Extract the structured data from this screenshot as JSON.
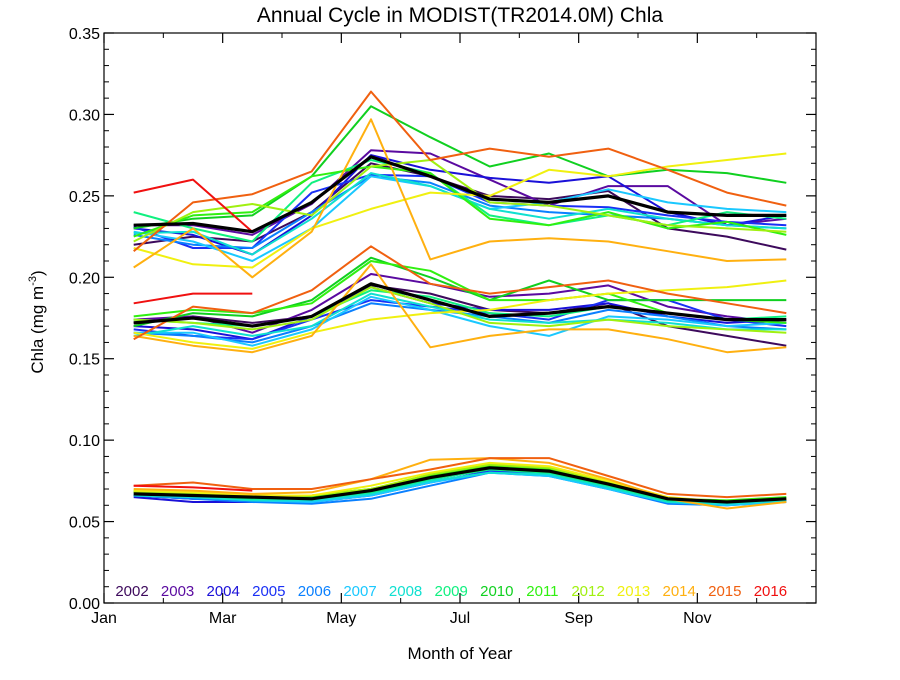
{
  "chart_data": {
    "type": "line",
    "title": "Annual Cycle in MODIST(TR2014.0M) Chla",
    "xlabel": "Month of Year",
    "ylabel_main": "Chla (mg m",
    "ylabel_exp": "-3",
    "ylabel_close": ")",
    "ylim": [
      0,
      0.35
    ],
    "xlim": [
      1,
      13
    ],
    "yticks": [
      "0.00",
      "0.05",
      "0.10",
      "0.15",
      "0.20",
      "0.25",
      "0.30",
      "0.35"
    ],
    "xticks": [
      "Jan",
      "Mar",
      "May",
      "Jul",
      "Sep",
      "Nov"
    ],
    "grid": false,
    "legend_position": "bottom inside plot",
    "x": [
      1.5,
      2.5,
      3.5,
      4.5,
      5.5,
      6.5,
      7.5,
      8.5,
      9.5,
      10.5,
      11.5,
      12.5
    ],
    "groups": [
      {
        "group": "upper",
        "series": [
          {
            "name": "2002",
            "color": "#3d0a5c",
            "values": [
              0.22,
              0.225,
              0.222,
              0.24,
              0.27,
              0.262,
              0.25,
              0.248,
              0.253,
              0.23,
              0.225,
              0.217
            ]
          },
          {
            "name": "2003",
            "color": "#5a0aa0",
            "values": [
              0.232,
              0.232,
              0.226,
              0.245,
              0.278,
              0.276,
              0.26,
              0.244,
              0.256,
              0.256,
              0.232,
              0.236
            ]
          },
          {
            "name": "2004",
            "color": "#1a10d8",
            "values": [
              0.23,
              0.226,
              0.214,
              0.238,
              0.275,
              0.266,
              0.261,
              0.258,
              0.262,
              0.24,
              0.232,
              0.238
            ]
          },
          {
            "name": "2005",
            "color": "#1a30f5",
            "values": [
              0.231,
              0.218,
              0.218,
              0.252,
              0.263,
              0.262,
              0.246,
              0.244,
              0.243,
              0.238,
              0.234,
              0.232
            ]
          },
          {
            "name": "2006",
            "color": "#0a80ff",
            "values": [
              0.226,
              0.22,
              0.218,
              0.24,
              0.262,
              0.258,
              0.244,
              0.24,
              0.238,
              0.236,
              0.232,
              0.23
            ]
          },
          {
            "name": "2007",
            "color": "#1ac8ff",
            "values": [
              0.228,
              0.222,
              0.21,
              0.23,
              0.262,
              0.256,
              0.242,
              0.246,
              0.254,
              0.246,
              0.242,
              0.24
            ]
          },
          {
            "name": "2008",
            "color": "#10e0d0",
            "values": [
              0.227,
              0.228,
              0.214,
              0.236,
              0.264,
              0.256,
              0.242,
              0.236,
              0.242,
              0.236,
              0.232,
              0.23
            ]
          },
          {
            "name": "2009",
            "color": "#10f080",
            "values": [
              0.24,
              0.23,
              0.222,
              0.258,
              0.272,
              0.264,
              0.238,
              0.232,
              0.238,
              0.232,
              0.24,
              0.236
            ]
          },
          {
            "name": "2010",
            "color": "#10d020",
            "values": [
              0.23,
              0.236,
              0.238,
              0.262,
              0.305,
              0.286,
              0.268,
              0.276,
              0.262,
              0.266,
              0.264,
              0.258
            ]
          },
          {
            "name": "2011",
            "color": "#30f010",
            "values": [
              0.225,
              0.238,
              0.24,
              0.262,
              0.268,
              0.264,
              0.236,
              0.232,
              0.24,
              0.23,
              0.234,
              0.226
            ]
          },
          {
            "name": "2012",
            "color": "#a0f010",
            "values": [
              0.222,
              0.24,
              0.245,
              0.238,
              0.268,
              0.272,
              0.246,
              0.244,
              0.238,
              0.232,
              0.23,
              0.228
            ]
          },
          {
            "name": "2013",
            "color": "#f0f010",
            "values": [
              0.218,
              0.208,
              0.206,
              0.23,
              0.242,
              0.252,
              0.25,
              0.266,
              0.262,
              0.268,
              0.272,
              0.276
            ]
          },
          {
            "name": "2014",
            "color": "#ffb010",
            "values": [
              0.206,
              0.23,
              0.2,
              0.228,
              0.297,
              0.211,
              0.222,
              0.224,
              0.222,
              0.216,
              0.21,
              0.211
            ]
          },
          {
            "name": "2015",
            "color": "#f06010",
            "values": [
              0.216,
              0.246,
              0.251,
              0.265,
              0.314,
              0.272,
              0.279,
              0.274,
              0.279,
              0.266,
              0.252,
              0.244
            ]
          },
          {
            "name": "2016",
            "color": "#f01010",
            "values": [
              0.252,
              0.26,
              0.228
            ]
          }
        ],
        "mean": [
          0.232,
          0.233,
          0.228,
          0.246,
          0.274,
          0.262,
          0.248,
          0.246,
          0.25,
          0.24,
          0.238,
          0.238
        ]
      },
      {
        "group": "middle",
        "series": [
          {
            "name": "2002",
            "color": "#3d0a5c",
            "values": [
              0.172,
              0.176,
              0.172,
              0.176,
              0.195,
              0.19,
              0.18,
              0.178,
              0.184,
              0.17,
              0.164,
              0.158
            ]
          },
          {
            "name": "2003",
            "color": "#5a0aa0",
            "values": [
              0.174,
              0.176,
              0.166,
              0.18,
              0.202,
              0.196,
              0.188,
              0.19,
              0.195,
              0.182,
              0.176,
              0.172
            ]
          },
          {
            "name": "2004",
            "color": "#1a10d8",
            "values": [
              0.17,
              0.168,
              0.162,
              0.176,
              0.194,
              0.184,
              0.18,
              0.18,
              0.184,
              0.176,
              0.172,
              0.174
            ]
          },
          {
            "name": "2005",
            "color": "#1a30f5",
            "values": [
              0.168,
              0.164,
              0.162,
              0.174,
              0.186,
              0.182,
              0.178,
              0.174,
              0.186,
              0.186,
              0.174,
              0.17
            ]
          },
          {
            "name": "2006",
            "color": "#0a80ff",
            "values": [
              0.166,
              0.164,
              0.16,
              0.17,
              0.184,
              0.18,
              0.176,
              0.172,
              0.18,
              0.176,
              0.17,
              0.168
            ]
          },
          {
            "name": "2007",
            "color": "#1ac8ff",
            "values": [
              0.166,
              0.166,
              0.158,
              0.168,
              0.188,
              0.18,
              0.17,
              0.164,
              0.176,
              0.174,
              0.17,
              0.172
            ]
          },
          {
            "name": "2008",
            "color": "#10e0d0",
            "values": [
              0.164,
              0.17,
              0.164,
              0.17,
              0.19,
              0.182,
              0.174,
              0.172,
              0.174,
              0.172,
              0.168,
              0.168
            ]
          },
          {
            "name": "2009",
            "color": "#10f080",
            "values": [
              0.174,
              0.172,
              0.17,
              0.176,
              0.192,
              0.188,
              0.178,
              0.176,
              0.182,
              0.178,
              0.174,
              0.176
            ]
          },
          {
            "name": "2010",
            "color": "#10d020",
            "values": [
              0.17,
              0.178,
              0.176,
              0.186,
              0.212,
              0.2,
              0.186,
              0.198,
              0.186,
              0.186,
              0.186,
              0.186
            ]
          },
          {
            "name": "2011",
            "color": "#30f010",
            "values": [
              0.176,
              0.18,
              0.178,
              0.184,
              0.21,
              0.204,
              0.186,
              0.186,
              0.19,
              0.178,
              0.174,
              0.172
            ]
          },
          {
            "name": "2012",
            "color": "#a0f010",
            "values": [
              0.174,
              0.172,
              0.168,
              0.174,
              0.194,
              0.184,
              0.172,
              0.17,
              0.174,
              0.17,
              0.168,
              0.166
            ]
          },
          {
            "name": "2013",
            "color": "#f0f010",
            "values": [
              0.166,
              0.16,
              0.156,
              0.166,
              0.174,
              0.178,
              0.18,
              0.186,
              0.19,
              0.192,
              0.194,
              0.198
            ]
          },
          {
            "name": "2014",
            "color": "#ffb010",
            "values": [
              0.164,
              0.158,
              0.154,
              0.164,
              0.208,
              0.157,
              0.164,
              0.168,
              0.168,
              0.162,
              0.154,
              0.157
            ]
          },
          {
            "name": "2015",
            "color": "#f06010",
            "values": [
              0.162,
              0.182,
              0.178,
              0.192,
              0.219,
              0.196,
              0.19,
              0.194,
              0.198,
              0.19,
              0.184,
              0.178
            ]
          },
          {
            "name": "2016",
            "color": "#f01010",
            "values": [
              0.184,
              0.19,
              0.19
            ]
          }
        ],
        "mean": [
          0.172,
          0.175,
          0.17,
          0.176,
          0.196,
          0.186,
          0.176,
          0.178,
          0.182,
          0.178,
          0.174,
          0.174
        ]
      },
      {
        "group": "lower",
        "series": [
          {
            "name": "2002",
            "color": "#3d0a5c",
            "values": [
              0.066,
              0.066,
              0.064,
              0.065,
              0.07,
              0.078,
              0.084,
              0.082,
              0.074,
              0.064,
              0.062,
              0.064
            ]
          },
          {
            "name": "2003",
            "color": "#5a0aa0",
            "values": [
              0.066,
              0.064,
              0.064,
              0.064,
              0.068,
              0.076,
              0.084,
              0.082,
              0.073,
              0.063,
              0.061,
              0.064
            ]
          },
          {
            "name": "2004",
            "color": "#1a10d8",
            "values": [
              0.065,
              0.062,
              0.062,
              0.063,
              0.068,
              0.076,
              0.082,
              0.08,
              0.072,
              0.062,
              0.06,
              0.063
            ]
          },
          {
            "name": "2005",
            "color": "#1a30f5",
            "values": [
              0.066,
              0.064,
              0.063,
              0.062,
              0.066,
              0.074,
              0.081,
              0.079,
              0.071,
              0.062,
              0.061,
              0.063
            ]
          },
          {
            "name": "2006",
            "color": "#0a80ff",
            "values": [
              0.066,
              0.064,
              0.062,
              0.061,
              0.064,
              0.072,
              0.08,
              0.078,
              0.07,
              0.061,
              0.06,
              0.062
            ]
          },
          {
            "name": "2007",
            "color": "#1ac8ff",
            "values": [
              0.067,
              0.065,
              0.063,
              0.062,
              0.066,
              0.074,
              0.08,
              0.078,
              0.07,
              0.062,
              0.06,
              0.062
            ]
          },
          {
            "name": "2008",
            "color": "#10e0d0",
            "values": [
              0.066,
              0.065,
              0.063,
              0.063,
              0.067,
              0.075,
              0.08,
              0.079,
              0.071,
              0.062,
              0.061,
              0.063
            ]
          },
          {
            "name": "2009",
            "color": "#10f080",
            "values": [
              0.068,
              0.066,
              0.064,
              0.064,
              0.068,
              0.076,
              0.082,
              0.08,
              0.072,
              0.063,
              0.062,
              0.064
            ]
          },
          {
            "name": "2010",
            "color": "#10d020",
            "values": [
              0.068,
              0.067,
              0.065,
              0.065,
              0.069,
              0.077,
              0.083,
              0.081,
              0.073,
              0.064,
              0.062,
              0.064
            ]
          },
          {
            "name": "2011",
            "color": "#30f010",
            "values": [
              0.069,
              0.068,
              0.066,
              0.066,
              0.07,
              0.078,
              0.084,
              0.082,
              0.074,
              0.064,
              0.063,
              0.065
            ]
          },
          {
            "name": "2012",
            "color": "#a0f010",
            "values": [
              0.068,
              0.067,
              0.065,
              0.066,
              0.07,
              0.079,
              0.085,
              0.083,
              0.074,
              0.064,
              0.062,
              0.064
            ]
          },
          {
            "name": "2013",
            "color": "#f0f010",
            "values": [
              0.069,
              0.068,
              0.066,
              0.066,
              0.072,
              0.08,
              0.086,
              0.084,
              0.075,
              0.065,
              0.062,
              0.064
            ]
          },
          {
            "name": "2014",
            "color": "#ffb010",
            "values": [
              0.07,
              0.069,
              0.067,
              0.068,
              0.076,
              0.088,
              0.089,
              0.086,
              0.076,
              0.064,
              0.058,
              0.062
            ]
          },
          {
            "name": "2015",
            "color": "#f06010",
            "values": [
              0.072,
              0.074,
              0.07,
              0.07,
              0.076,
              0.082,
              0.089,
              0.089,
              0.078,
              0.067,
              0.065,
              0.067
            ]
          },
          {
            "name": "2016",
            "color": "#f01010",
            "values": [
              0.072,
              0.071,
              0.069
            ]
          }
        ],
        "mean": [
          0.067,
          0.066,
          0.065,
          0.064,
          0.069,
          0.077,
          0.083,
          0.081,
          0.073,
          0.064,
          0.062,
          0.064
        ]
      }
    ],
    "mean_color": "#000000"
  }
}
